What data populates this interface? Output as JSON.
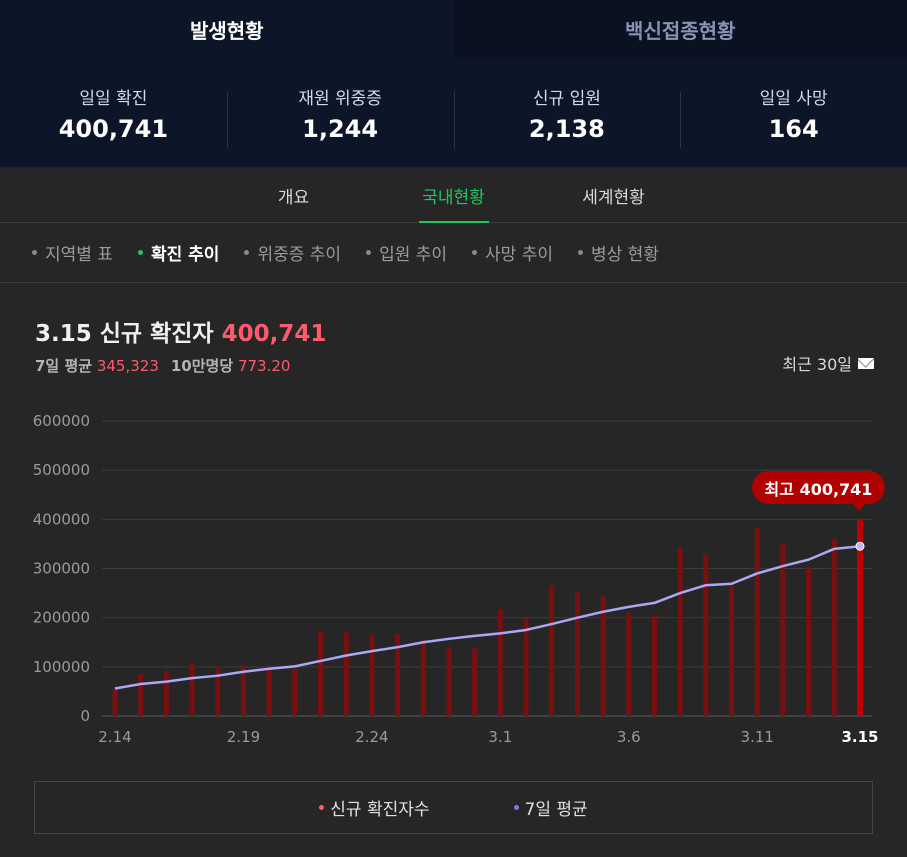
{
  "top_tabs": {
    "active": "발생현황",
    "inactive": "백신접종현황"
  },
  "stats": [
    {
      "label": "일일 확진",
      "value": "400,741"
    },
    {
      "label": "재원 위중증",
      "value": "1,244"
    },
    {
      "label": "신규 입원",
      "value": "2,138"
    },
    {
      "label": "일일 사망",
      "value": "164"
    }
  ],
  "sub_tabs": [
    "개요",
    "국내현황",
    "세계현황"
  ],
  "menu": [
    "지역별 표",
    "확진 추이",
    "위중증 추이",
    "입원 추이",
    "사망 추이",
    "병상 현황"
  ],
  "header": {
    "title": "3.15 신규 확진자",
    "title_value": "400,741",
    "avg_label": "7일 평균",
    "avg_value": "345,323",
    "per_label": "10만명당",
    "per_value": "773.20",
    "period": "최근 30일"
  },
  "tooltip": "최고 400,741",
  "legend": {
    "bars": "신규 확진자수",
    "line": "7일 평균"
  },
  "colors": {
    "bar": "#7a0f0f",
    "bar_highlight": "#c00000",
    "line": "#a8a8f5",
    "red_text": "#ff5a6e",
    "green": "#22c55e",
    "legend_bar_dot": "#ff5a6e",
    "legend_line_dot": "#7b7bf0"
  },
  "chart_data": {
    "type": "bar",
    "y_ticks": [
      "600000",
      "500000",
      "400000",
      "300000",
      "200000",
      "100000",
      "0"
    ],
    "ylim": [
      0,
      600000
    ],
    "x_tick_labels": [
      "2.14",
      "2.19",
      "2.24",
      "3.1",
      "3.6",
      "3.11",
      "3.15"
    ],
    "categories": [
      "2.14",
      "2.15",
      "2.16",
      "2.17",
      "2.18",
      "2.19",
      "2.20",
      "2.21",
      "2.22",
      "2.23",
      "2.24",
      "2.25",
      "2.26",
      "2.27",
      "2.28",
      "3.1",
      "3.2",
      "3.3",
      "3.4",
      "3.5",
      "3.6",
      "3.7",
      "3.8",
      "3.9",
      "3.10",
      "3.11",
      "3.12",
      "3.13",
      "3.14",
      "3.15"
    ],
    "series": [
      {
        "name": "신규 확진자수",
        "type": "bar",
        "values": [
          55000,
          85000,
          92000,
          108000,
          100000,
          102000,
          95000,
          96000,
          172000,
          170000,
          165000,
          167000,
          155000,
          140000,
          138000,
          217000,
          198000,
          266000,
          253000,
          243000,
          210000,
          203000,
          342000,
          328000,
          265000,
          383000,
          350000,
          303000,
          360000,
          400741
        ]
      },
      {
        "name": "7일 평균",
        "type": "line",
        "values": [
          56000,
          65000,
          70000,
          77000,
          82000,
          90000,
          96000,
          101000,
          112000,
          123000,
          132000,
          140000,
          150000,
          157000,
          163000,
          168000,
          175000,
          187000,
          200000,
          212000,
          222000,
          230000,
          250000,
          266000,
          269000,
          290000,
          305000,
          318000,
          340000,
          345323
        ]
      }
    ]
  }
}
